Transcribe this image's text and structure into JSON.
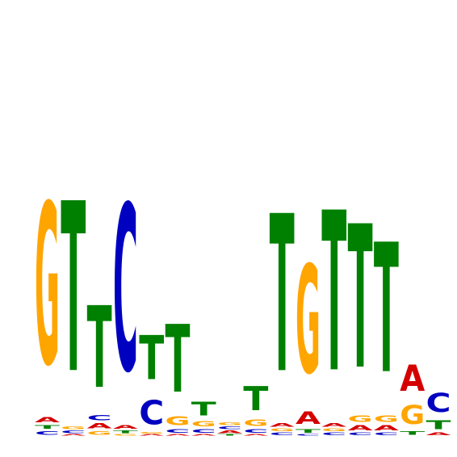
{
  "chart_data": {
    "type": "sequence-logo",
    "title": "",
    "xlabel": "",
    "ylabel": "",
    "alphabet": [
      "A",
      "C",
      "G",
      "T"
    ],
    "ylim": [
      0,
      2
    ],
    "colors": {
      "A": "#d40000",
      "C": "#0000c0",
      "G": "#ffa500",
      "T": "#008000"
    },
    "positions": [
      {
        "A": 0.04,
        "C": 0.03,
        "G": 1.28,
        "T": 0.03
      },
      {
        "A": 0.01,
        "C": 0.02,
        "G": 0.02,
        "T": 1.35
      },
      {
        "A": 0.04,
        "C": 0.04,
        "G": 0.03,
        "T": 0.65
      },
      {
        "A": 0.03,
        "C": 1.32,
        "G": 0.01,
        "T": 0.02
      },
      {
        "A": 0.01,
        "C": 0.19,
        "G": 0.01,
        "T": 0.35
      },
      {
        "A": 0.01,
        "C": 0.03,
        "G": 0.07,
        "T": 0.54
      },
      {
        "A": 0.01,
        "C": 0.03,
        "G": 0.04,
        "T": 0.11
      },
      {
        "A": 0.02,
        "C": 0.02,
        "G": 0.02,
        "T": 0.01
      },
      {
        "A": 0.01,
        "C": 0.03,
        "G": 0.05,
        "T": 0.19
      },
      {
        "A": 0.03,
        "C": 0.02,
        "G": 0.02,
        "T": 1.25
      },
      {
        "A": 0.1,
        "C": 0.01,
        "G": 0.86,
        "T": 0.03
      },
      {
        "A": 0.03,
        "C": 0.02,
        "G": 0.02,
        "T": 1.27
      },
      {
        "A": 0.04,
        "C": 0.02,
        "G": 0.05,
        "T": 1.14
      },
      {
        "A": 0.04,
        "C": 0.02,
        "G": 0.05,
        "T": 1.03
      },
      {
        "A": 0.21,
        "C": 0.0,
        "G": 0.15,
        "T": 0.03
      },
      {
        "A": 0.02,
        "C": 0.15,
        "G": 0.0,
        "T": 0.07
      }
    ]
  }
}
